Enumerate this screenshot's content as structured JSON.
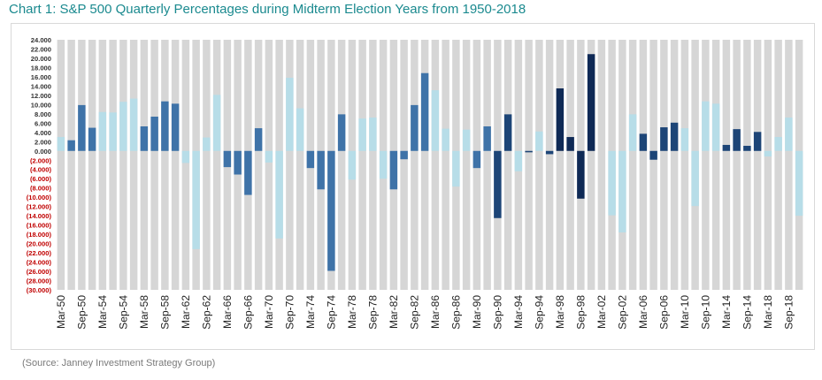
{
  "title": "Chart 1: S&P 500 Quarterly Percentages during Midterm Election Years from 1950-2018",
  "source": "(Source: Janney Investment Strategy Group)",
  "colors": {
    "positive_label": "#333333",
    "negative_label": "#c00000",
    "grid_bar": "#d6d6d6",
    "shade_light": "#b7dde8",
    "shade_mid": "#3f73a8",
    "shade_dark": "#1d4577",
    "shade_darkest": "#0f2a56"
  },
  "chart_data": {
    "type": "bar",
    "title": "Chart 1: S&P 500 Quarterly Percentages during Midterm Election Years from 1950-2018",
    "xlabel": "",
    "ylabel": "",
    "ylim": [
      -30,
      24
    ],
    "grid": true,
    "legend": "none",
    "y_ticks": [
      "24.000",
      "22.000",
      "20.000",
      "18.000",
      "16.000",
      "14.000",
      "12.000",
      "10.000",
      "8.000",
      "6.000",
      "4.000",
      "2.000",
      "0.000",
      "(2.000)",
      "(4.000)",
      "(6.000)",
      "(8.000)",
      "(10.000)",
      "(12.000)",
      "(14.000)",
      "(16.000)",
      "(18.000)",
      "(20.000)",
      "(22.000)",
      "(24.000)",
      "(26.000)",
      "(28.000)",
      "(30.000)"
    ],
    "x_tick_labels": [
      "Mar-50",
      "Sep-50",
      "Mar-54",
      "Sep-54",
      "Mar-58",
      "Sep-58",
      "Mar-62",
      "Sep-62",
      "Mar-66",
      "Sep-66",
      "Mar-70",
      "Sep-70",
      "Mar-74",
      "Sep-74",
      "Mar-78",
      "Sep-78",
      "Mar-82",
      "Sep-82",
      "Mar-86",
      "Sep-86",
      "Mar-90",
      "Sep-90",
      "Mar-94",
      "Sep-94",
      "Mar-98",
      "Sep-98",
      "Mar-02",
      "Sep-02",
      "Mar-06",
      "Sep-06",
      "Mar-10",
      "Sep-10",
      "Mar-14",
      "Sep-14",
      "Mar-18",
      "Sep-18"
    ],
    "categories": [
      "Mar-50",
      "Jun-50",
      "Sep-50",
      "Dec-50",
      "Mar-54",
      "Jun-54",
      "Sep-54",
      "Dec-54",
      "Mar-58",
      "Jun-58",
      "Sep-58",
      "Dec-58",
      "Mar-62",
      "Jun-62",
      "Sep-62",
      "Dec-62",
      "Mar-66",
      "Jun-66",
      "Sep-66",
      "Dec-66",
      "Mar-70",
      "Jun-70",
      "Sep-70",
      "Dec-70",
      "Mar-74",
      "Jun-74",
      "Sep-74",
      "Dec-74",
      "Mar-78",
      "Jun-78",
      "Sep-78",
      "Dec-78",
      "Mar-82",
      "Jun-82",
      "Sep-82",
      "Dec-82",
      "Mar-86",
      "Jun-86",
      "Sep-86",
      "Dec-86",
      "Mar-90",
      "Jun-90",
      "Sep-90",
      "Dec-90",
      "Mar-94",
      "Jun-94",
      "Sep-94",
      "Dec-94",
      "Mar-98",
      "Jun-98",
      "Sep-98",
      "Dec-98",
      "Mar-02",
      "Jun-02",
      "Sep-02",
      "Dec-02",
      "Mar-06",
      "Jun-06",
      "Sep-06",
      "Dec-06",
      "Mar-10",
      "Jun-10",
      "Sep-10",
      "Dec-10",
      "Mar-14",
      "Jun-14",
      "Sep-14",
      "Dec-14",
      "Mar-18",
      "Jun-18",
      "Sep-18",
      "Dec-18"
    ],
    "values": [
      3.0,
      2.3,
      9.9,
      5.0,
      8.4,
      8.3,
      10.6,
      11.3,
      5.3,
      7.4,
      10.7,
      10.2,
      -2.6,
      -21.2,
      2.9,
      12.1,
      -3.5,
      -5.1,
      -9.5,
      4.9,
      -2.5,
      -18.9,
      15.8,
      9.2,
      -3.7,
      -8.3,
      -25.9,
      7.9,
      -6.2,
      7.0,
      7.2,
      -6.0,
      -8.3,
      -1.8,
      9.9,
      16.8,
      13.1,
      4.8,
      -7.7,
      4.6,
      -3.7,
      5.3,
      -14.5,
      7.9,
      -4.4,
      -0.3,
      4.2,
      -0.7,
      13.5,
      3.0,
      -10.3,
      20.9,
      0.0,
      -13.9,
      -17.6,
      7.9,
      3.7,
      -1.9,
      5.1,
      6.1,
      4.9,
      -11.9,
      10.7,
      10.2,
      1.3,
      4.7,
      1.1,
      4.1,
      -1.2,
      3.0,
      7.2,
      -14.0
    ],
    "shades": [
      "light",
      "mid",
      "mid",
      "mid",
      "light",
      "light",
      "light",
      "light",
      "mid",
      "mid",
      "mid",
      "mid",
      "light",
      "light",
      "light",
      "light",
      "mid",
      "mid",
      "mid",
      "mid",
      "light",
      "light",
      "light",
      "light",
      "mid",
      "mid",
      "mid",
      "mid",
      "light",
      "light",
      "light",
      "light",
      "mid",
      "mid",
      "mid",
      "mid",
      "light",
      "light",
      "light",
      "light",
      "mid",
      "mid",
      "dark",
      "dark",
      "light",
      "dark",
      "light",
      "dark",
      "darkest",
      "darkest",
      "darkest",
      "darkest",
      "light",
      "light",
      "light",
      "light",
      "dark",
      "dark",
      "dark",
      "dark",
      "light",
      "light",
      "light",
      "light",
      "dark",
      "dark",
      "dark",
      "dark",
      "light",
      "light",
      "light",
      "light"
    ]
  }
}
